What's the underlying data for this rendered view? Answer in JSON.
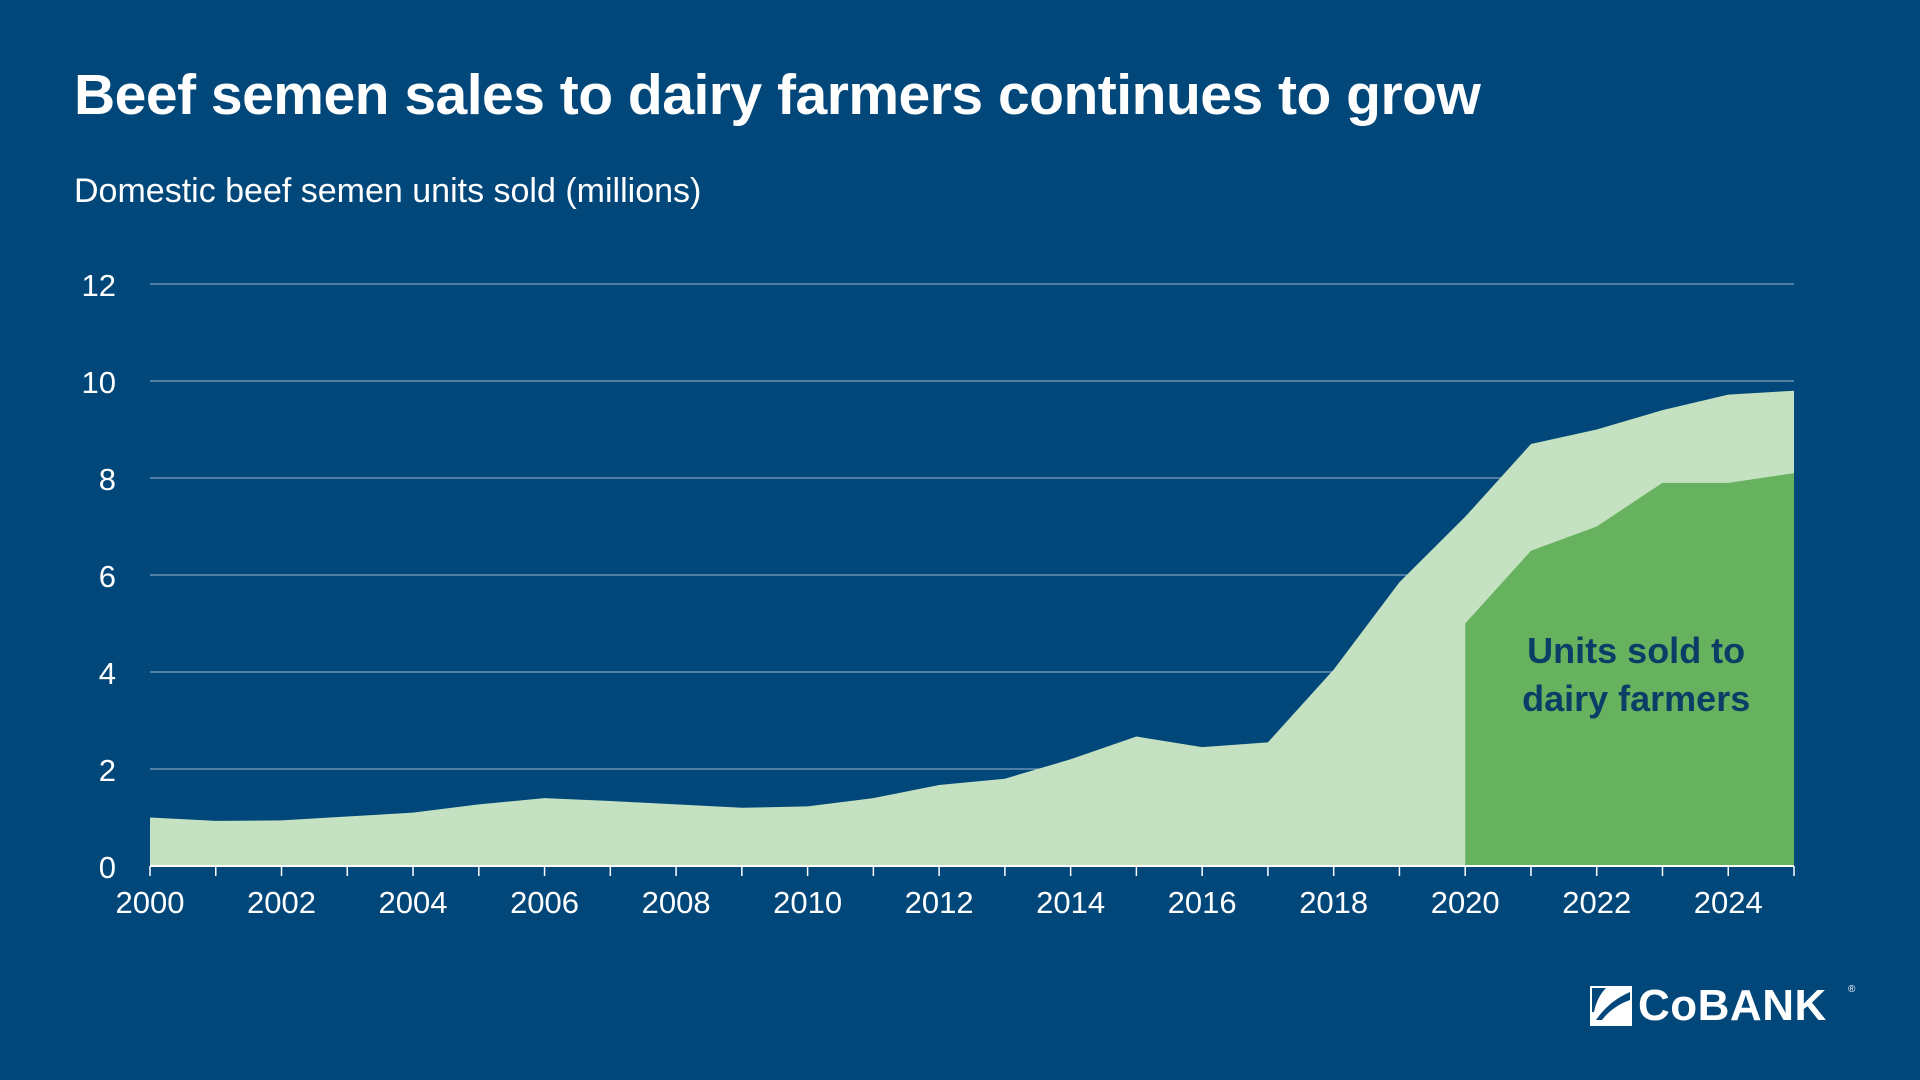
{
  "title": "Beef semen sales to dairy farmers continues to grow",
  "subtitle": "Domestic beef semen units sold (millions)",
  "logo": {
    "text": "CoBANK",
    "reg": "®"
  },
  "colors": {
    "background": "#02477a",
    "total_area": "#c4e2c1",
    "dairy_area": "#66b25f",
    "annotation_text": "#0b3d66",
    "gridline": "#7f9fbd"
  },
  "chart_data": {
    "type": "area",
    "title": "Beef semen sales to dairy farmers continues to grow",
    "subtitle": "Domestic beef semen units sold (millions)",
    "xlabel": "",
    "ylabel": "",
    "xlim": [
      2000,
      2025
    ],
    "ylim": [
      0,
      12
    ],
    "x_ticks": [
      "2000",
      "2002",
      "2004",
      "2006",
      "2008",
      "2010",
      "2012",
      "2014",
      "2016",
      "2018",
      "2020",
      "2022",
      "2024"
    ],
    "y_ticks": [
      "0",
      "2",
      "4",
      "6",
      "8",
      "10",
      "12"
    ],
    "grid": true,
    "series": [
      {
        "x": [
          2000,
          2001,
          2002,
          2003,
          2004,
          2005,
          2006,
          2007,
          2008,
          2009,
          2010,
          2011,
          2012,
          2013,
          2014,
          2015,
          2016,
          2017,
          2018,
          2019,
          2020,
          2021,
          2022,
          2023,
          2024,
          2025
        ],
        "values": [
          1.0,
          0.93,
          0.94,
          1.02,
          1.1,
          1.27,
          1.4,
          1.34,
          1.27,
          1.2,
          1.23,
          1.4,
          1.67,
          1.8,
          2.2,
          2.67,
          2.45,
          2.55,
          4.05,
          5.85,
          7.2,
          8.7,
          9.0,
          9.4,
          9.72,
          9.8
        ]
      },
      {
        "x": [
          2020,
          2021,
          2022,
          2023,
          2024,
          2025
        ],
        "values": [
          5.0,
          6.5,
          7.0,
          7.9,
          7.9,
          8.1
        ]
      }
    ],
    "annotations": [
      {
        "text_lines": [
          "Units sold to",
          "dairy farmers"
        ],
        "x": 2022.6,
        "y": 4.0
      }
    ]
  }
}
